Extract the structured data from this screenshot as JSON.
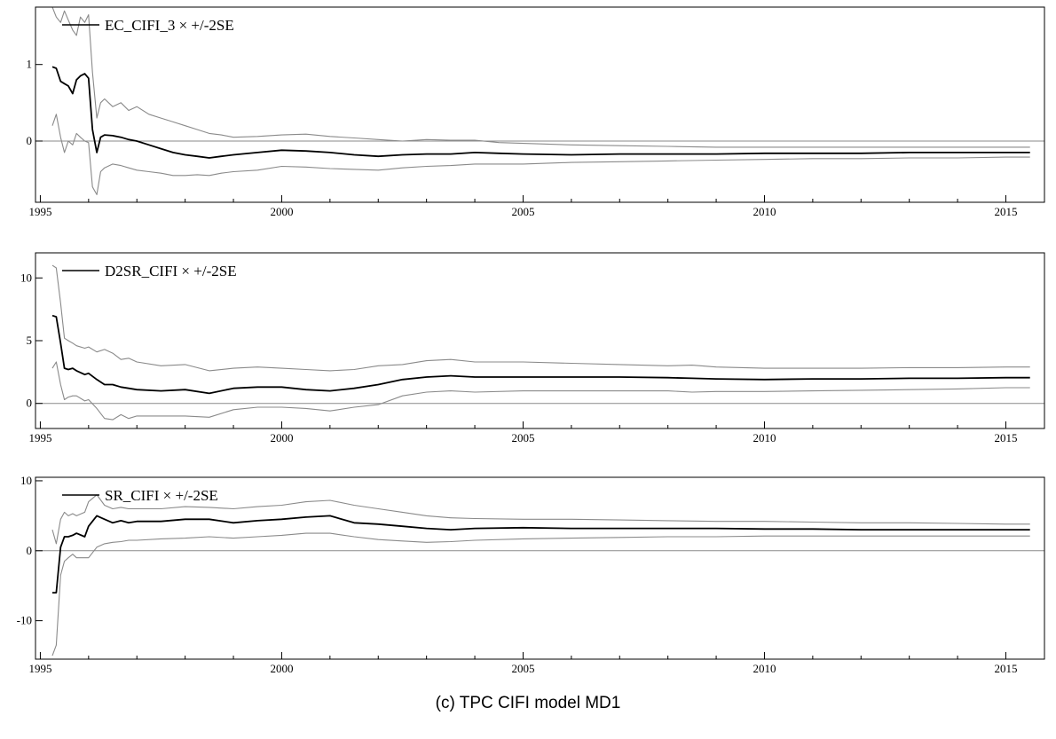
{
  "caption": "(c) TPC CIFI model MD1",
  "colors": {
    "estimate": "#000000",
    "band": "#8a8a8a",
    "zero_line": "#8a8a8a",
    "frame": "#000000"
  },
  "chart_data": [
    {
      "type": "line",
      "legend": "EC_CIFI_3 × +/-2SE",
      "legend_position": "top-left",
      "xlim": [
        1994.9,
        2015.8
      ],
      "ylim": [
        -0.8,
        1.75
      ],
      "xticks": [
        1995,
        2000,
        2005,
        2010,
        2015
      ],
      "yticks": [
        0,
        1
      ],
      "grid": false,
      "reference_line": 0,
      "x": [
        1995.25,
        1995.33,
        1995.42,
        1995.5,
        1995.58,
        1995.67,
        1995.75,
        1995.83,
        1995.92,
        1996.0,
        1996.08,
        1996.17,
        1996.25,
        1996.33,
        1996.5,
        1996.67,
        1996.83,
        1997.0,
        1997.25,
        1997.5,
        1997.75,
        1998.0,
        1998.25,
        1998.5,
        1998.75,
        1999.0,
        1999.5,
        2000.0,
        2000.5,
        2001.0,
        2001.5,
        2002.0,
        2002.5,
        2003.0,
        2003.5,
        2004.0,
        2004.5,
        2005.0,
        2006.0,
        2007.0,
        2008.0,
        2009.0,
        2010.0,
        2011.0,
        2012.0,
        2013.0,
        2014.0,
        2015.0,
        2015.5
      ],
      "series": [
        {
          "role": "upper",
          "values": [
            1.75,
            1.62,
            1.55,
            1.7,
            1.58,
            1.45,
            1.38,
            1.62,
            1.55,
            1.65,
            0.9,
            0.3,
            0.5,
            0.55,
            0.45,
            0.5,
            0.4,
            0.45,
            0.35,
            0.3,
            0.25,
            0.2,
            0.15,
            0.1,
            0.08,
            0.05,
            0.06,
            0.08,
            0.09,
            0.06,
            0.04,
            0.02,
            0.0,
            0.02,
            0.01,
            0.01,
            -0.02,
            -0.03,
            -0.05,
            -0.06,
            -0.07,
            -0.08,
            -0.08,
            -0.08,
            -0.08,
            -0.08,
            -0.08,
            -0.08,
            -0.08
          ]
        },
        {
          "role": "estimate",
          "values": [
            0.97,
            0.95,
            0.78,
            0.75,
            0.72,
            0.62,
            0.8,
            0.85,
            0.88,
            0.82,
            0.15,
            -0.15,
            0.05,
            0.08,
            0.07,
            0.05,
            0.02,
            0.0,
            -0.05,
            -0.1,
            -0.15,
            -0.18,
            -0.2,
            -0.22,
            -0.2,
            -0.18,
            -0.15,
            -0.12,
            -0.13,
            -0.15,
            -0.18,
            -0.2,
            -0.18,
            -0.17,
            -0.17,
            -0.15,
            -0.16,
            -0.17,
            -0.18,
            -0.17,
            -0.17,
            -0.17,
            -0.16,
            -0.16,
            -0.16,
            -0.15,
            -0.15,
            -0.15,
            -0.15
          ]
        },
        {
          "role": "lower",
          "values": [
            0.2,
            0.35,
            0.05,
            -0.15,
            0.0,
            -0.05,
            0.1,
            0.05,
            0.0,
            -0.02,
            -0.6,
            -0.7,
            -0.4,
            -0.35,
            -0.3,
            -0.32,
            -0.35,
            -0.38,
            -0.4,
            -0.42,
            -0.45,
            -0.45,
            -0.44,
            -0.45,
            -0.42,
            -0.4,
            -0.38,
            -0.33,
            -0.34,
            -0.36,
            -0.37,
            -0.38,
            -0.35,
            -0.33,
            -0.32,
            -0.3,
            -0.3,
            -0.3,
            -0.28,
            -0.27,
            -0.26,
            -0.25,
            -0.24,
            -0.23,
            -0.23,
            -0.22,
            -0.22,
            -0.21,
            -0.21
          ]
        }
      ]
    },
    {
      "type": "line",
      "legend": "D2SR_CIFI × +/-2SE",
      "legend_position": "top-left",
      "xlim": [
        1994.9,
        2015.8
      ],
      "ylim": [
        -2.0,
        12.0
      ],
      "xticks": [
        1995,
        2000,
        2005,
        2010,
        2015
      ],
      "yticks": [
        0,
        5,
        10
      ],
      "grid": false,
      "reference_line": 0,
      "x": [
        1995.25,
        1995.33,
        1995.42,
        1995.5,
        1995.58,
        1995.67,
        1995.75,
        1995.92,
        1996.0,
        1996.17,
        1996.33,
        1996.5,
        1996.67,
        1996.83,
        1997.0,
        1997.5,
        1998.0,
        1998.5,
        1999.0,
        1999.5,
        2000.0,
        2000.5,
        2001.0,
        2001.5,
        2002.0,
        2002.5,
        2003.0,
        2003.5,
        2004.0,
        2005.0,
        2006.0,
        2007.0,
        2008.0,
        2008.5,
        2009.0,
        2010.0,
        2011.0,
        2012.0,
        2013.0,
        2014.0,
        2015.0,
        2015.5
      ],
      "series": [
        {
          "role": "upper",
          "values": [
            11.0,
            10.8,
            8.0,
            5.2,
            5.0,
            4.8,
            4.6,
            4.4,
            4.5,
            4.1,
            4.3,
            4.0,
            3.5,
            3.6,
            3.3,
            3.0,
            3.1,
            2.6,
            2.8,
            2.9,
            2.8,
            2.7,
            2.6,
            2.7,
            3.0,
            3.1,
            3.4,
            3.5,
            3.3,
            3.3,
            3.2,
            3.1,
            3.0,
            3.05,
            2.9,
            2.8,
            2.8,
            2.8,
            2.85,
            2.85,
            2.9,
            2.9
          ]
        },
        {
          "role": "estimate",
          "values": [
            7.0,
            6.9,
            4.8,
            2.8,
            2.7,
            2.8,
            2.6,
            2.3,
            2.4,
            1.9,
            1.5,
            1.5,
            1.3,
            1.2,
            1.1,
            1.0,
            1.1,
            0.8,
            1.2,
            1.3,
            1.3,
            1.1,
            1.0,
            1.2,
            1.5,
            1.9,
            2.1,
            2.2,
            2.1,
            2.1,
            2.1,
            2.1,
            2.05,
            2.0,
            1.95,
            1.9,
            1.95,
            1.95,
            2.0,
            2.0,
            2.05,
            2.05
          ]
        },
        {
          "role": "lower",
          "values": [
            2.8,
            3.3,
            1.5,
            0.3,
            0.5,
            0.6,
            0.6,
            0.2,
            0.3,
            -0.4,
            -1.2,
            -1.3,
            -0.9,
            -1.2,
            -1.0,
            -1.0,
            -1.0,
            -1.1,
            -0.5,
            -0.3,
            -0.3,
            -0.4,
            -0.6,
            -0.3,
            -0.1,
            0.6,
            0.9,
            1.0,
            0.9,
            1.0,
            1.0,
            1.0,
            1.0,
            0.9,
            0.95,
            0.95,
            1.0,
            1.05,
            1.1,
            1.15,
            1.25,
            1.25
          ]
        }
      ]
    },
    {
      "type": "line",
      "legend": "SR_CIFI × +/-2SE",
      "legend_position": "top-left",
      "xlim": [
        1994.9,
        2015.8
      ],
      "ylim": [
        -15.5,
        10.5
      ],
      "xticks": [
        1995,
        2000,
        2005,
        2010,
        2015
      ],
      "yticks": [
        -10,
        0,
        10
      ],
      "grid": false,
      "reference_line": 0,
      "x": [
        1995.25,
        1995.33,
        1995.42,
        1995.5,
        1995.58,
        1995.67,
        1995.75,
        1995.92,
        1996.0,
        1996.17,
        1996.33,
        1996.5,
        1996.67,
        1996.83,
        1997.0,
        1997.5,
        1998.0,
        1998.5,
        1999.0,
        1999.5,
        2000.0,
        2000.5,
        2001.0,
        2001.5,
        2002.0,
        2002.5,
        2003.0,
        2003.5,
        2004.0,
        2005.0,
        2006.0,
        2007.0,
        2008.0,
        2009.0,
        2010.0,
        2011.0,
        2012.0,
        2013.0,
        2014.0,
        2015.0,
        2015.5
      ],
      "series": [
        {
          "role": "upper",
          "values": [
            3.0,
            1.0,
            4.5,
            5.5,
            5.0,
            5.3,
            5.0,
            5.5,
            7.0,
            8.0,
            6.5,
            6.0,
            6.2,
            6.0,
            6.0,
            6.0,
            6.3,
            6.2,
            6.0,
            6.3,
            6.5,
            7.0,
            7.2,
            6.5,
            6.0,
            5.5,
            5.0,
            4.7,
            4.6,
            4.5,
            4.5,
            4.4,
            4.3,
            4.2,
            4.2,
            4.1,
            4.0,
            4.0,
            3.9,
            3.8,
            3.8
          ]
        },
        {
          "role": "estimate",
          "values": [
            -6.0,
            -6.0,
            0.5,
            2.0,
            2.0,
            2.2,
            2.5,
            2.0,
            3.5,
            5.0,
            4.5,
            4.0,
            4.3,
            4.0,
            4.2,
            4.2,
            4.5,
            4.5,
            4.0,
            4.3,
            4.5,
            4.8,
            5.0,
            4.0,
            3.8,
            3.5,
            3.2,
            3.0,
            3.2,
            3.3,
            3.2,
            3.2,
            3.2,
            3.2,
            3.1,
            3.1,
            3.0,
            3.0,
            3.0,
            3.0,
            3.0
          ]
        },
        {
          "role": "lower",
          "values": [
            -15.0,
            -13.5,
            -3.5,
            -1.5,
            -1.0,
            -0.5,
            -1.0,
            -1.0,
            -1.0,
            0.5,
            1.0,
            1.2,
            1.3,
            1.5,
            1.5,
            1.7,
            1.8,
            2.0,
            1.8,
            2.0,
            2.2,
            2.5,
            2.5,
            2.0,
            1.6,
            1.4,
            1.2,
            1.3,
            1.5,
            1.7,
            1.8,
            1.9,
            2.0,
            2.0,
            2.1,
            2.1,
            2.1,
            2.1,
            2.1,
            2.1,
            2.1
          ]
        }
      ]
    }
  ]
}
